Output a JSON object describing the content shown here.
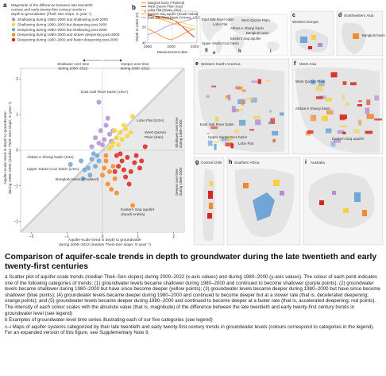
{
  "panel_labels": {
    "a": "a",
    "b": "b",
    "c": "c",
    "d": "d",
    "e": "e",
    "f": "f",
    "g": "g",
    "h": "h",
    "i": "i"
  },
  "legend": {
    "title": "Magnitude of the difference between late twentieth century and early twenty-first century trends in depth to groundwater (Theil–Sen slope; m year⁻¹)",
    "title_lines": [
      "Magnitude of the difference between late twentieth",
      "century and early twenty-first century trends in",
      "depth to groundwater (Theil–Sen slope; m year⁻¹)"
    ],
    "items": [
      {
        "label": "Shallowing during 1980–2000 and shallowing post-2000",
        "color": "#b48fd0"
      },
      {
        "label": "Shallowing during 1980–2000 but deepening post-2000",
        "color": "#f3d23e"
      },
      {
        "label": "Deepening during 1980–2000 but shallowing post-2000",
        "color": "#6fa6d6"
      },
      {
        "label": "Deepening during 1980–2000 and slower deepening post-2000",
        "color": "#f08a2c"
      },
      {
        "label": "Deepening during 1980–2000 and faster deepening post-2000",
        "color": "#d7261e"
      }
    ]
  },
  "scatter": {
    "ylabel_lines": [
      "Aquifer-scale trend in depth to groundwater",
      "during 1980–2000 (median Theil–Sen slope; m year⁻¹)"
    ],
    "xlabel_lines": [
      "Aquifer-scale trend in depth to groundwater",
      "during 2000–2022 (median Theil–Sen slope; m year⁻¹)"
    ],
    "shallower_label": [
      "Shallower over time",
      "during 2000–2022"
    ],
    "deeper_label": [
      "Deeper over time",
      "during 2000–2022"
    ],
    "right_shallower": [
      "Shallower over time",
      "during 1980–2000"
    ],
    "right_deeper": [
      "Deeper over time",
      "during 1980–2000"
    ],
    "annotations": [
      {
        "text": "East Salt River basin (USA)"
      },
      {
        "text": "Lobo Flat (USA)"
      },
      {
        "text": "West Qazvin"
      },
      {
        "text": "Plain (Iran)"
      },
      {
        "text": "Abbas-e Shargi basin (Iran)"
      },
      {
        "text": "Upper Santa Cruz basin (USA)"
      },
      {
        "text": "Bangkok basin (Thailand)"
      },
      {
        "text": "Eastern Saq aquifer"
      },
      {
        "text": "(Saudi Arabia)"
      }
    ]
  },
  "chart_data": [
    {
      "type": "scatter",
      "xlabel": "Aquifer-scale trend in depth to groundwater during 2000–2022 (median Theil–Sen slope; m year⁻¹)",
      "ylabel": "Aquifer-scale trend in depth to groundwater during 1980–2000 (median Theil–Sen slope; m year⁻¹)",
      "xlim": [
        -2.3,
        2.3
      ],
      "ylim": [
        -2.3,
        2.3
      ],
      "xticks": [
        -2,
        -1,
        0,
        1,
        2
      ],
      "yticks": [
        -2,
        -1,
        0,
        1,
        2
      ],
      "points": [
        {
          "x": -0.1,
          "y": 1.35,
          "c": "#b48fd0"
        },
        {
          "x": 0.15,
          "y": 0.9,
          "c": "#b48fd0"
        },
        {
          "x": -0.05,
          "y": 0.55,
          "c": "#b48fd0"
        },
        {
          "x": 0.1,
          "y": 0.7,
          "c": "#b48fd0"
        },
        {
          "x": -0.2,
          "y": 0.35,
          "c": "#b48fd0"
        },
        {
          "x": 0.2,
          "y": 0.45,
          "c": "#b48fd0"
        },
        {
          "x": 0.05,
          "y": 0.3,
          "c": "#b48fd0"
        },
        {
          "x": -0.1,
          "y": 0.2,
          "c": "#b48fd0"
        },
        {
          "x": 0.25,
          "y": 0.25,
          "c": "#b48fd0"
        },
        {
          "x": 0.0,
          "y": 0.15,
          "c": "#b48fd0"
        },
        {
          "x": 0.3,
          "y": 0.55,
          "c": "#b48fd0"
        },
        {
          "x": -0.3,
          "y": 0.1,
          "c": "#b48fd0"
        },
        {
          "x": 0.85,
          "y": 0.95,
          "c": "#f3d23e"
        },
        {
          "x": 0.6,
          "y": 0.7,
          "c": "#f3d23e"
        },
        {
          "x": 0.5,
          "y": 0.5,
          "c": "#f3d23e"
        },
        {
          "x": 0.4,
          "y": 0.35,
          "c": "#f3d23e"
        },
        {
          "x": 0.7,
          "y": 0.4,
          "c": "#f3d23e"
        },
        {
          "x": 0.35,
          "y": 0.55,
          "c": "#f3d23e"
        },
        {
          "x": 0.55,
          "y": 0.3,
          "c": "#f3d23e"
        },
        {
          "x": 0.3,
          "y": 0.2,
          "c": "#f3d23e"
        },
        {
          "x": 0.45,
          "y": 0.15,
          "c": "#f3d23e"
        },
        {
          "x": 0.65,
          "y": 0.6,
          "c": "#f3d23e"
        },
        {
          "x": 0.25,
          "y": 0.1,
          "c": "#f3d23e"
        },
        {
          "x": 0.8,
          "y": 0.5,
          "c": "#f3d23e"
        },
        {
          "x": 0.2,
          "y": 0.05,
          "c": "#f3d23e"
        },
        {
          "x": -0.9,
          "y": -0.4,
          "c": "#6fa6d6"
        },
        {
          "x": -0.6,
          "y": -0.3,
          "c": "#6fa6d6"
        },
        {
          "x": -0.4,
          "y": -0.5,
          "c": "#6fa6d6"
        },
        {
          "x": -0.3,
          "y": -0.25,
          "c": "#6fa6d6"
        },
        {
          "x": -0.2,
          "y": -0.45,
          "c": "#6fa6d6"
        },
        {
          "x": -0.15,
          "y": -0.15,
          "c": "#6fa6d6"
        },
        {
          "x": -0.35,
          "y": -0.7,
          "c": "#6fa6d6"
        },
        {
          "x": -0.5,
          "y": -0.55,
          "c": "#6fa6d6"
        },
        {
          "x": -0.1,
          "y": -0.3,
          "c": "#6fa6d6"
        },
        {
          "x": -0.25,
          "y": -0.1,
          "c": "#6fa6d6"
        },
        {
          "x": -0.55,
          "y": -0.8,
          "c": "#6fa6d6"
        },
        {
          "x": 0.1,
          "y": -0.3,
          "c": "#f08a2c"
        },
        {
          "x": 0.2,
          "y": -0.6,
          "c": "#f08a2c"
        },
        {
          "x": 0.35,
          "y": -0.8,
          "c": "#f08a2c"
        },
        {
          "x": 0.05,
          "y": -0.5,
          "c": "#f08a2c"
        },
        {
          "x": 0.15,
          "y": -0.95,
          "c": "#f08a2c"
        },
        {
          "x": 0.3,
          "y": -0.45,
          "c": "#f08a2c"
        },
        {
          "x": 0.0,
          "y": -0.7,
          "c": "#f08a2c"
        },
        {
          "x": 0.25,
          "y": -1.1,
          "c": "#f08a2c"
        },
        {
          "x": 0.85,
          "y": -1.55,
          "c": "#f08a2c"
        },
        {
          "x": 0.4,
          "y": -1.2,
          "c": "#f08a2c"
        },
        {
          "x": 0.1,
          "y": -0.15,
          "c": "#f08a2c"
        },
        {
          "x": 0.4,
          "y": -0.15,
          "c": "#d7261e"
        },
        {
          "x": 0.55,
          "y": -0.3,
          "c": "#d7261e"
        },
        {
          "x": 0.7,
          "y": -0.2,
          "c": "#d7261e"
        },
        {
          "x": 0.9,
          "y": -0.35,
          "c": "#d7261e"
        },
        {
          "x": 0.6,
          "y": -0.55,
          "c": "#d7261e"
        },
        {
          "x": 0.8,
          "y": -0.6,
          "c": "#d7261e"
        },
        {
          "x": 1.05,
          "y": -0.5,
          "c": "#d7261e"
        },
        {
          "x": 0.5,
          "y": -0.1,
          "c": "#d7261e"
        },
        {
          "x": 0.95,
          "y": -0.15,
          "c": "#d7261e"
        },
        {
          "x": 0.65,
          "y": -0.75,
          "c": "#d7261e"
        },
        {
          "x": 1.1,
          "y": -0.3,
          "c": "#d7261e"
        },
        {
          "x": 0.75,
          "y": -0.95,
          "c": "#d7261e"
        },
        {
          "x": 0.45,
          "y": -0.45,
          "c": "#d7261e"
        },
        {
          "x": 0.35,
          "y": -0.6,
          "c": "#d7261e"
        },
        {
          "x": 1.2,
          "y": 0.1,
          "c": "#d7261e"
        }
      ]
    },
    {
      "type": "line",
      "ylabel": "Depth to water (m)",
      "xlabel": "Measurement date",
      "xlim": [
        1980,
        2022
      ],
      "ylim": [
        0,
        40
      ],
      "xticks": [
        1980,
        2000,
        2020
      ],
      "yticks": [
        0,
        20,
        40
      ],
      "series": [
        {
          "name": "Bangkok basin (Thailand)",
          "color": "#f08a2c",
          "x": [
            1980,
            1985,
            1990,
            1995,
            2000,
            2005,
            2010,
            2015,
            2020
          ],
          "y": [
            22,
            26,
            30,
            34,
            36,
            33,
            29,
            25,
            22
          ]
        },
        {
          "name": "West Qazvin Plain (Iran)",
          "color": "#d7261e",
          "x": [
            1980,
            1985,
            1990,
            1995,
            2000,
            2005,
            2010,
            2015,
            2020
          ],
          "y": [
            5,
            6,
            7,
            8,
            10,
            14,
            20,
            27,
            33
          ]
        },
        {
          "name": "Lobo Flat (Texas, USA)",
          "color": "#f3d23e",
          "x": [
            1980,
            1985,
            1990,
            1995,
            2000,
            2005,
            2010,
            2015,
            2020
          ],
          "y": [
            8,
            9,
            10,
            10,
            11,
            13,
            15,
            17,
            19
          ]
        },
        {
          "name": "Eastern Saq aquifer (Saudi Arabia)",
          "color": "#f0a860",
          "x": [
            1980,
            1985,
            1990,
            1995,
            2000,
            2005,
            2010,
            2015,
            2020
          ],
          "y": [
            3,
            6,
            9,
            12,
            15,
            17,
            19,
            21,
            23
          ]
        },
        {
          "name": "East Salt River basin (Arizona, USA)",
          "color": "#b48fd0",
          "x": [
            1980,
            1985,
            1990,
            1995,
            2000,
            2005,
            2010,
            2015,
            2020
          ],
          "y": [
            30,
            27,
            24,
            20,
            17,
            15,
            13,
            11,
            9
          ]
        }
      ]
    }
  ],
  "timeseries": {
    "ylabel": "Depth to water (m)",
    "xlabel": "Measurement date",
    "legend": [
      {
        "label": "Bangkok basin (Thailand)"
      },
      {
        "label": "West Qazvin Plain (Iran)"
      },
      {
        "label": "Lobo Flat (Texas, USA)"
      },
      {
        "label": "Eastern Saq aquifer (Saudi Arabia)"
      },
      {
        "label": "East Salt River basin (Arizona, USA)"
      }
    ]
  },
  "maps": {
    "locator_labels": [
      "East Salt River basin",
      "Lobo Flat",
      "West Qazvin Plain",
      "Abbas-e Shargi basin",
      "Bangkok basin",
      "Eastern Saq aquifer",
      "Upper Santa Cruz basin"
    ],
    "c": {
      "title": "Western Europe"
    },
    "d": {
      "title": "Southeastern Asia",
      "label": "Bangkok basin"
    },
    "e": {
      "title": "Western North America",
      "labels": [
        "East Salt River basin",
        "Upper Santa Cruz basin",
        "Lobo Flat"
      ]
    },
    "f": {
      "title": "West Asia",
      "labels": [
        "West Qazvin Plain",
        "Abbas-e Shargi basin",
        "Eastern Saq aquifer"
      ]
    },
    "g": {
      "title": "Central Chile"
    },
    "h": {
      "title": "Southern Africa"
    },
    "i": {
      "title": "Australia"
    }
  },
  "caption": {
    "title": "Comparison of aquifer-scale trends in depth to groundwater during the late twentieth and early twenty-first centuries",
    "a": "a Scatter plot of aquifer-scale trends (median Theil–Sen slopes) during 2000–2022 (x-axis values) and during 1980–2000 (y-axis values). The colour of each point indicates one of the following categories of trends: (1) groundwater levels became shallower during 1980–2000 and continued to become shallower (purple points); (2) groundwater levels became shallower during 1980–2000 but have since become deeper (yellow points); (3) groundwater levels became deeper during 1980–2000 but have since become shallower (blue points); (4) groundwater levels became deeper during 1980–2000 and continued to become deeper but at a slower rate (that is, decelerated deepening; orange points); and (5) groundwater levels became deeper during 1980–2000 and continued to become deeper at a faster rate (that is, accelerated deepening; red points). The intensity of each colour scales with the absolute value (that is, magnitude) of the difference between the late twentieth and early twenty-first century trends in groundwater level (see legend)",
    "b": "b Examples of groundwater-level time series illustrating each of our five categories (see legend)",
    "ci": "c–i Maps of aquifer systems categorized by their late twentieth and early twenty-first century trends in groundwater levels (colours correspond to categories in the legend). For an expanded version of this figure, see Supplementary Note 9."
  }
}
